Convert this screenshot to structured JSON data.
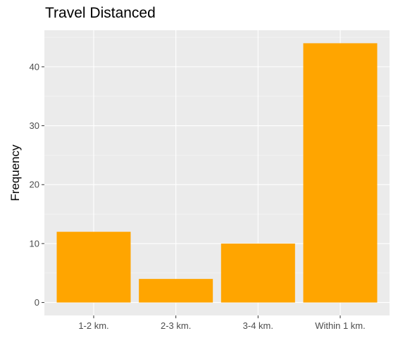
{
  "chart_data": {
    "type": "bar",
    "title": "Travel Distanced",
    "xlabel": "",
    "ylabel": "Frequency",
    "categories": [
      "1-2 km.",
      "2-3 km.",
      "3-4 km.",
      "Within 1 km."
    ],
    "values": [
      12,
      4,
      10,
      44
    ],
    "ylim": [
      -2.2,
      46.2
    ],
    "yticks": [
      0,
      10,
      20,
      30,
      40
    ],
    "grid": true,
    "legend": "none",
    "colors": {
      "bar": "#FFA500",
      "panel": "#EBEBEB",
      "grid_major": "#FFFFFF",
      "grid_minor": "#F7F7F7"
    }
  }
}
